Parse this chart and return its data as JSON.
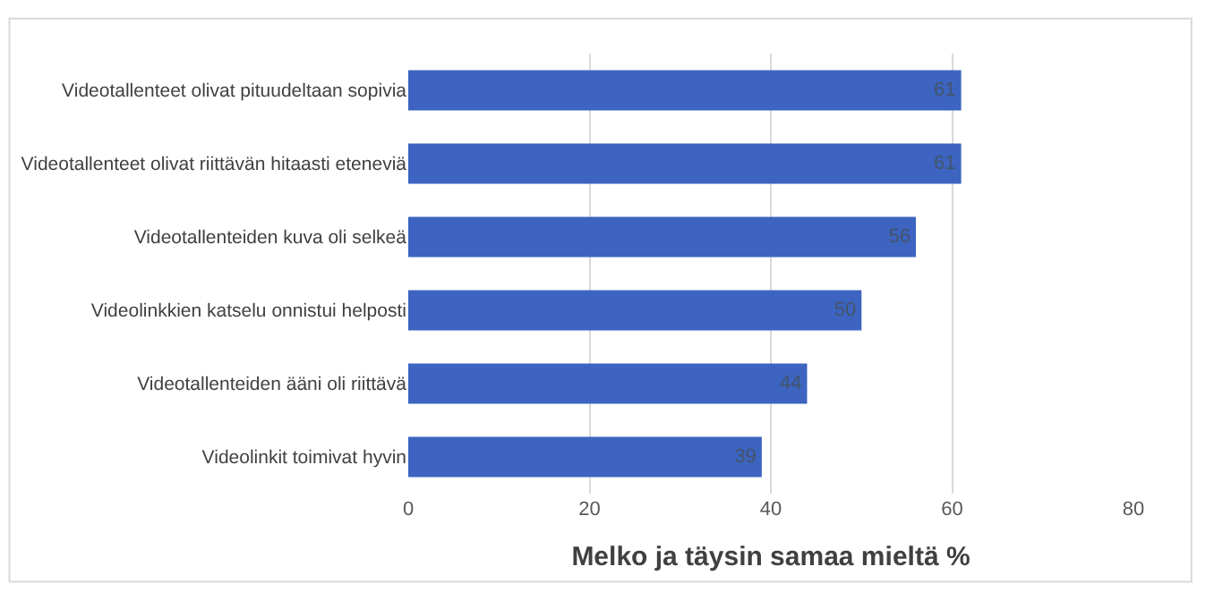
{
  "chart_data": {
    "type": "bar",
    "orientation": "horizontal",
    "xlabel": "Melko ja täysin samaa mieltä %",
    "categories": [
      "Videotallenteet olivat pituudeltaan sopivia",
      "Videotallenteet olivat riittävän hitaasti eteneviä",
      "Videotallenteiden kuva oli selkeä",
      "Videolinkkien katselu onnistui helposti",
      "Videotallenteiden ääni oli riittävä",
      "Videolinkit toimivat hyvin"
    ],
    "values": [
      61,
      61,
      56,
      50,
      44,
      39
    ],
    "color": "#3c64c0",
    "xlim": [
      0,
      80
    ],
    "xticks": [
      0,
      20,
      40,
      60,
      80
    ],
    "grid": "x",
    "data_labels": true
  }
}
